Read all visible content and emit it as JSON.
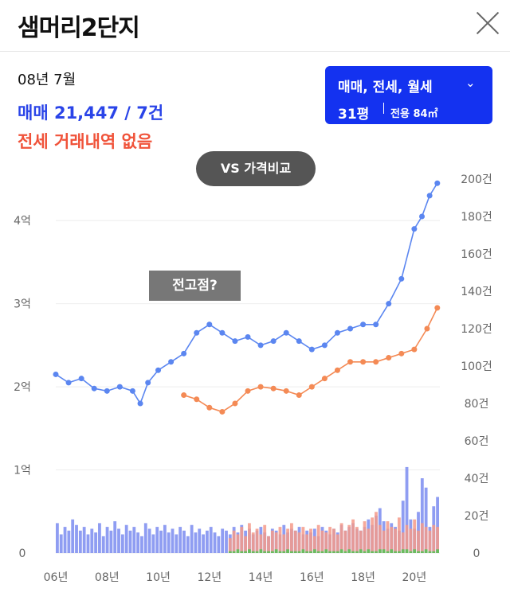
{
  "header": {
    "title": "샘머리2단지",
    "close_icon": "close-icon"
  },
  "info": {
    "date": "08년 7월",
    "sale": "매매 21,447 / 7건",
    "jeonse": "전세 거래내역 없음"
  },
  "filter": {
    "types": "매매, 전세, 월세",
    "chevron": "chevron-down-icon",
    "size_pyeong": "31평",
    "size_exclusive": "전용 84㎡"
  },
  "compare_button": "VS 가격비교",
  "annotation": "전고점?",
  "colors": {
    "sale": "#5b86f0",
    "jeonse": "#f48a55",
    "count_sale": "#7b8cf0",
    "count_jeonse": "#f59a8a",
    "count_monthly": "#55c255",
    "accent": "#1432f0"
  },
  "chart_data": {
    "type": "line",
    "x_ticks": [
      "06년",
      "08년",
      "10년",
      "12년",
      "14년",
      "16년",
      "18년",
      "20년"
    ],
    "x_range": [
      2006,
      2021
    ],
    "y_left": {
      "ticks": [
        "0",
        "1억",
        "2억",
        "3억",
        "4억"
      ],
      "range": [
        0,
        4.5
      ],
      "unit": "억"
    },
    "y_right": {
      "ticks": [
        "0",
        "20건",
        "40건",
        "60건",
        "80건",
        "100건",
        "120건",
        "140건",
        "160건",
        "180건",
        "200건"
      ],
      "range": [
        0,
        200
      ],
      "unit": "건"
    },
    "series": [
      {
        "name": "매매",
        "x": [
          2006.0,
          2006.5,
          2007.0,
          2007.5,
          2008.0,
          2008.5,
          2009.0,
          2009.3,
          2009.6,
          2010.0,
          2010.5,
          2011.0,
          2011.5,
          2012.0,
          2012.5,
          2013.0,
          2013.5,
          2014.0,
          2014.5,
          2015.0,
          2015.5,
          2016.0,
          2016.5,
          2017.0,
          2017.5,
          2018.0,
          2018.5,
          2019.0,
          2019.5,
          2020.0,
          2020.3,
          2020.6,
          2020.9
        ],
        "y": [
          2.15,
          2.05,
          2.1,
          1.98,
          1.95,
          2.0,
          1.95,
          1.8,
          2.05,
          2.2,
          2.3,
          2.4,
          2.65,
          2.75,
          2.65,
          2.55,
          2.6,
          2.5,
          2.55,
          2.65,
          2.55,
          2.45,
          2.5,
          2.65,
          2.7,
          2.75,
          2.75,
          3.0,
          3.3,
          3.9,
          4.05,
          4.3,
          4.45
        ]
      },
      {
        "name": "전세",
        "x": [
          2011.0,
          2011.5,
          2012.0,
          2012.5,
          2013.0,
          2013.5,
          2014.0,
          2014.5,
          2015.0,
          2015.5,
          2016.0,
          2016.5,
          2017.0,
          2017.5,
          2018.0,
          2018.5,
          2019.0,
          2019.5,
          2020.0,
          2020.5,
          2020.9
        ],
        "y": [
          1.9,
          1.85,
          1.75,
          1.7,
          1.8,
          1.95,
          2.0,
          1.98,
          1.95,
          1.9,
          2.0,
          2.1,
          2.2,
          2.3,
          2.3,
          2.3,
          2.35,
          2.4,
          2.45,
          2.7,
          2.95
        ]
      }
    ],
    "count_bars": {
      "x_start": 2006.0,
      "x_end": 2021.0,
      "sale": [
        16,
        10,
        14,
        12,
        18,
        15,
        12,
        14,
        10,
        13,
        11,
        16,
        9,
        14,
        12,
        17,
        13,
        10,
        15,
        12,
        14,
        11,
        9,
        16,
        13,
        10,
        14,
        12,
        15,
        11,
        13,
        10,
        14,
        12,
        9,
        15,
        11,
        13,
        10,
        12,
        14,
        11,
        9,
        13,
        12,
        10,
        14,
        11,
        15,
        12,
        13,
        10,
        12,
        14,
        11,
        9,
        13,
        12,
        10,
        15,
        11,
        13,
        12,
        14,
        10,
        12,
        11,
        13,
        9,
        14,
        12,
        10,
        13,
        11,
        15,
        12,
        14,
        16,
        13,
        12,
        14,
        18,
        15,
        20,
        24,
        17,
        13,
        16,
        14,
        12,
        28,
        46,
        18,
        13,
        22,
        40,
        35,
        14,
        25,
        30
      ],
      "jeonse": [
        0,
        0,
        0,
        0,
        0,
        0,
        0,
        0,
        0,
        0,
        0,
        0,
        0,
        0,
        0,
        0,
        0,
        0,
        0,
        0,
        0,
        0,
        0,
        0,
        0,
        0,
        0,
        0,
        0,
        0,
        0,
        0,
        0,
        0,
        0,
        0,
        0,
        0,
        0,
        0,
        0,
        0,
        0,
        0,
        0,
        8,
        12,
        10,
        14,
        9,
        16,
        11,
        13,
        10,
        15,
        9,
        12,
        11,
        14,
        10,
        13,
        16,
        12,
        11,
        14,
        10,
        13,
        9,
        15,
        12,
        11,
        14,
        13,
        10,
        16,
        12,
        15,
        18,
        14,
        12,
        17,
        13,
        19,
        22,
        15,
        12,
        17,
        14,
        13,
        19,
        11,
        15,
        13,
        18,
        12,
        16,
        14,
        12,
        15,
        14
      ],
      "monthly": [
        0,
        0,
        0,
        0,
        0,
        0,
        0,
        0,
        0,
        0,
        0,
        0,
        0,
        0,
        0,
        0,
        0,
        0,
        0,
        0,
        0,
        0,
        0,
        0,
        0,
        0,
        0,
        0,
        0,
        0,
        0,
        0,
        0,
        0,
        0,
        0,
        0,
        0,
        0,
        0,
        0,
        0,
        0,
        0,
        0,
        1,
        1,
        2,
        1,
        1,
        2,
        1,
        1,
        2,
        1,
        1,
        1,
        2,
        1,
        1,
        2,
        1,
        1,
        1,
        2,
        1,
        1,
        2,
        1,
        1,
        2,
        1,
        1,
        1,
        2,
        1,
        2,
        1,
        1,
        2,
        1,
        2,
        1,
        1,
        2,
        2,
        1,
        2,
        1,
        1,
        2,
        2,
        1,
        2,
        1,
        1,
        2,
        1,
        1,
        2
      ]
    }
  }
}
